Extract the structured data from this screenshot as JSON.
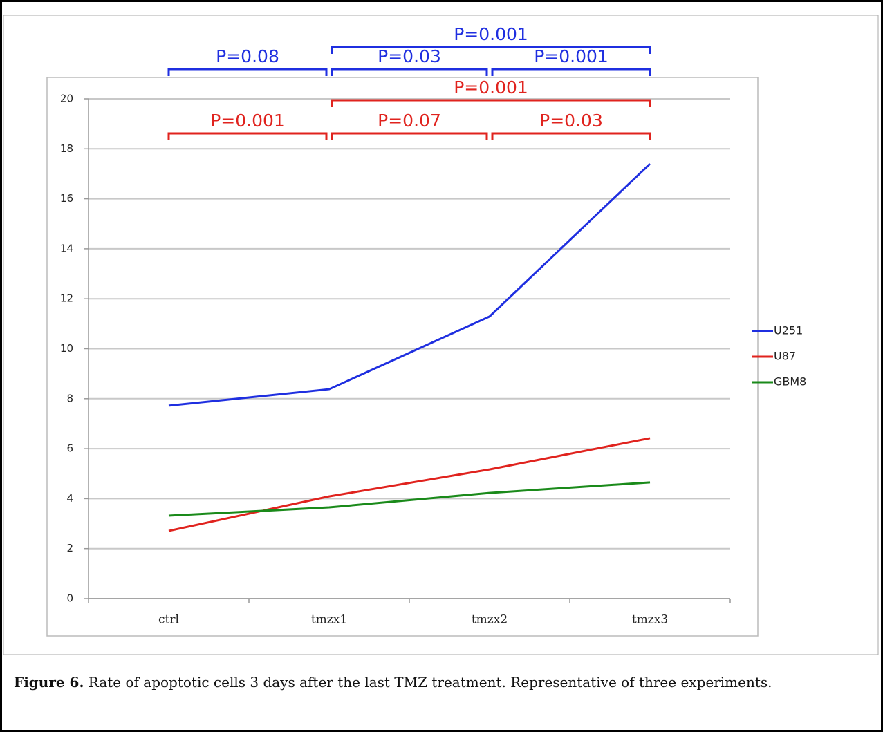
{
  "chart_data": {
    "type": "line",
    "categories": [
      "ctrl",
      "tmzx1",
      "tmzx2",
      "tmzx3"
    ],
    "series": [
      {
        "name": "U251",
        "color": "#1f2fe0",
        "values": [
          7.72,
          8.38,
          11.29,
          17.4
        ]
      },
      {
        "name": "U87",
        "color": "#e0231e",
        "values": [
          2.71,
          4.09,
          5.17,
          6.42
        ]
      },
      {
        "name": "GBM8",
        "color": "#1a8a1a",
        "values": [
          3.32,
          3.65,
          4.23,
          4.65
        ]
      }
    ],
    "ylim": [
      0,
      20
    ],
    "yticks": [
      0,
      2,
      4,
      6,
      8,
      10,
      12,
      14,
      16,
      18,
      20
    ],
    "grid": true,
    "legend": "right",
    "annotations": [
      {
        "label": "P=0.08",
        "start": "ctrl",
        "end": "tmzx1",
        "color": "#1f2fe0"
      },
      {
        "label": "P=0.03",
        "start": "tmzx1",
        "end": "tmzx2",
        "color": "#1f2fe0"
      },
      {
        "label": "P=0.001",
        "start": "tmzx2",
        "end": "tmzx3",
        "color": "#1f2fe0"
      },
      {
        "label": "P=0.001",
        "start": "tmzx1",
        "end": "tmzx3",
        "color": "#1f2fe0"
      },
      {
        "label": "P=0.001",
        "start": "ctrl",
        "end": "tmzx1",
        "color": "#e0231e"
      },
      {
        "label": "P=0.07",
        "start": "tmzx1",
        "end": "tmzx2",
        "color": "#e0231e"
      },
      {
        "label": "P=0.03",
        "start": "tmzx2",
        "end": "tmzx3",
        "color": "#e0231e"
      },
      {
        "label": "P=0.001",
        "start": "tmzx1",
        "end": "tmzx3",
        "color": "#e0231e"
      }
    ]
  },
  "caption": {
    "label": "Figure 6.",
    "text": " Rate of apoptotic cells 3 days after the last TMZ treatment. Representative of three experiments."
  }
}
